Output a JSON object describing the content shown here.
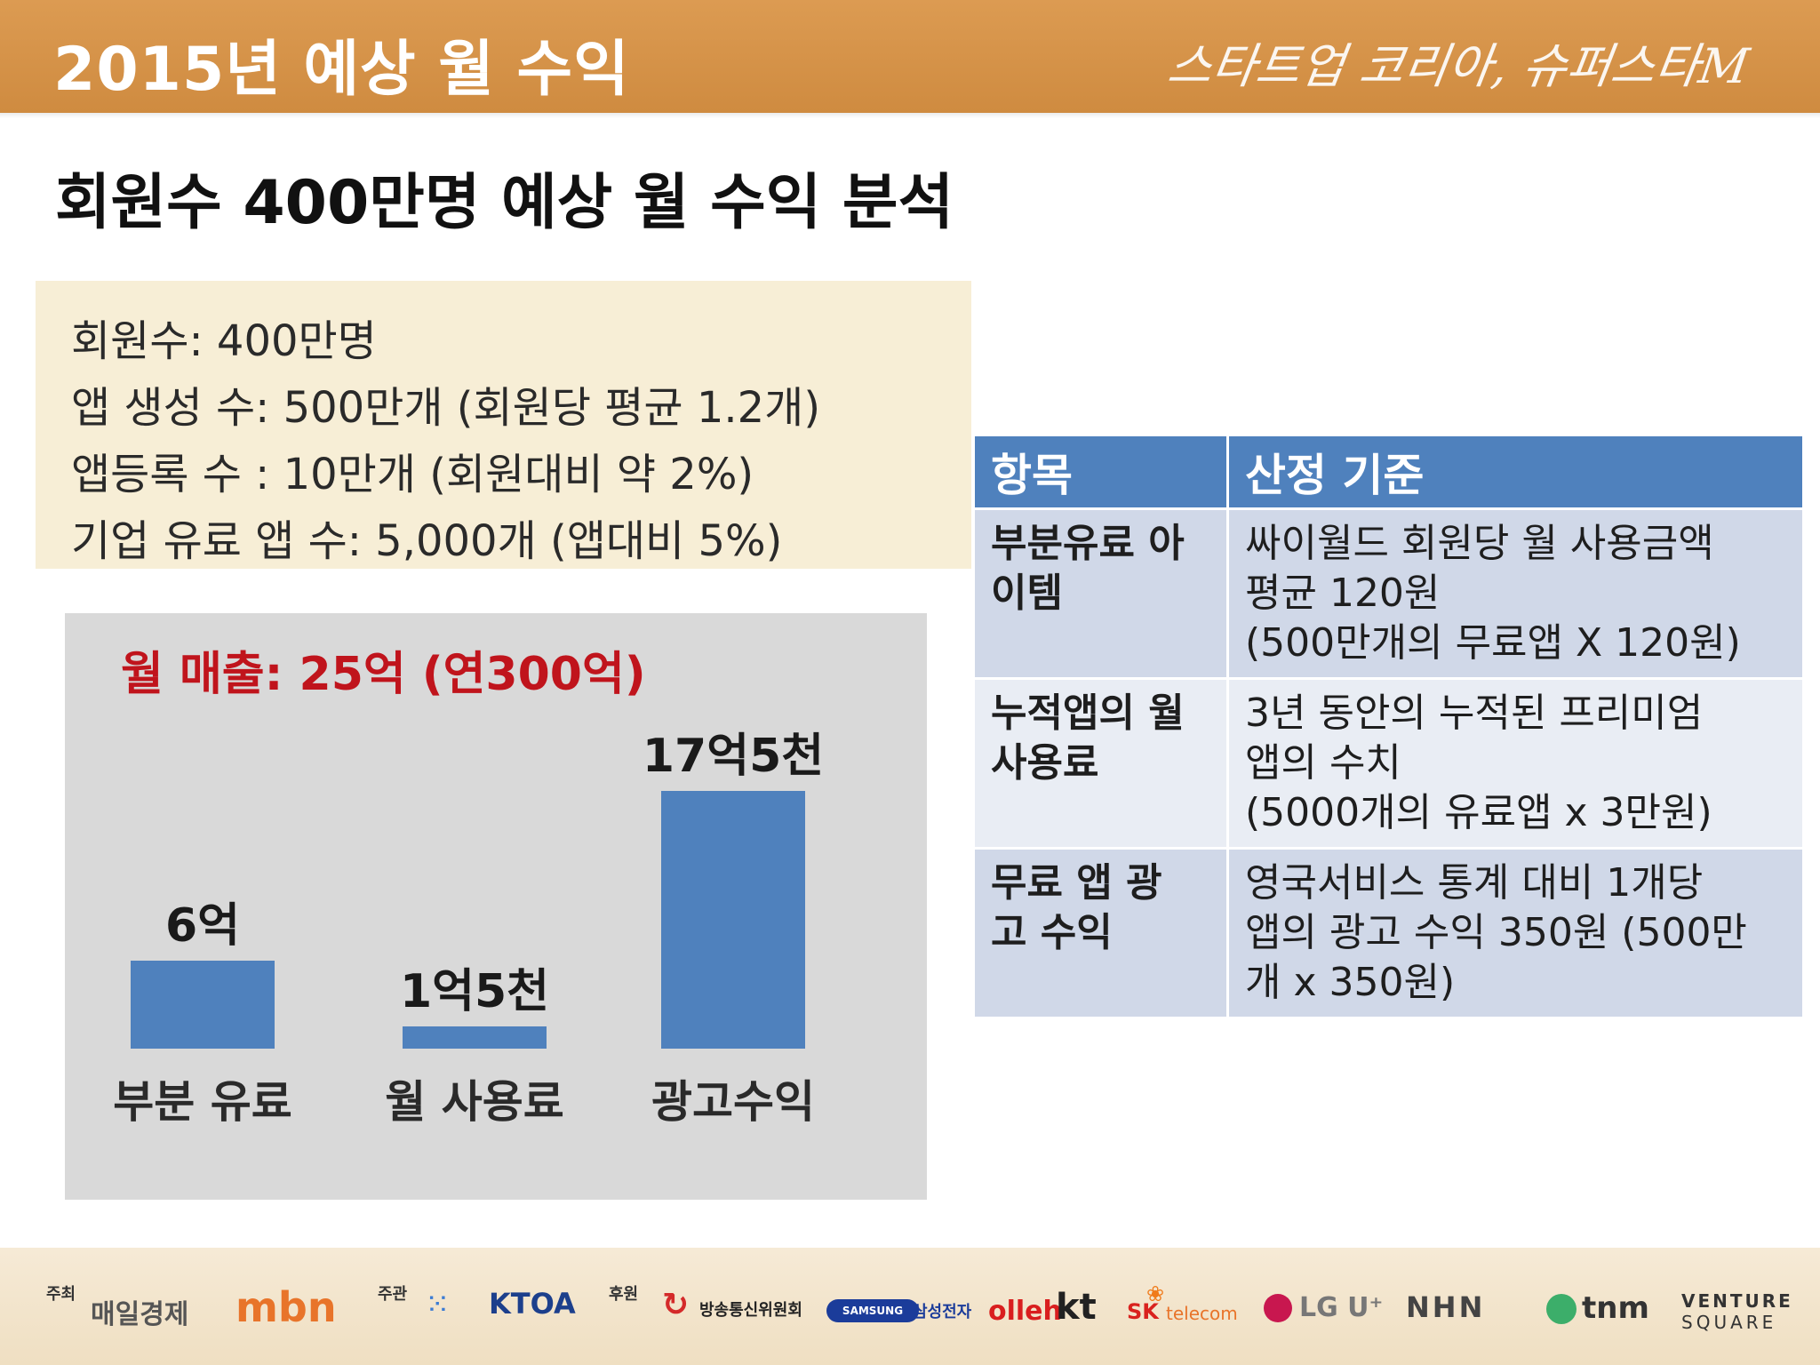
{
  "header": {
    "title": "2015년 예상 월 수익",
    "slogan": "스타트업 코리아, 슈퍼스타M"
  },
  "subtitle": "회원수 400만명 예상 월 수익 분석",
  "info": {
    "lines": [
      "회원수: 400만명",
      "앱 생성 수: 500만개 (회원당 평균 1.2개)",
      "앱등록 수 : 10만개 (회원대비 약 2%)",
      "기업 유료 앱 수: 5,000개 (앱대비 5%)"
    ]
  },
  "chart_data": {
    "type": "bar",
    "title": "월 매출: 25억 (연300억)",
    "categories": [
      "부분 유료",
      "월 사용료",
      "광고수익"
    ],
    "values": [
      6,
      1.5,
      17.5
    ],
    "value_labels": [
      "6억",
      "1억5천",
      "17억5천"
    ],
    "unit": "억",
    "ylim": [
      0,
      17.5
    ],
    "grid": false,
    "legend": "none",
    "colors": {
      "bar": "#4f81bd",
      "background": "#d9d9d9",
      "title": "#c0141c"
    }
  },
  "table": {
    "headers": [
      "항목",
      "산정 기준"
    ],
    "rows": [
      {
        "item": [
          "부분유료 아",
          "이템"
        ],
        "basis": [
          "싸이월드 회원당 월 사용금액",
          "평균 120원",
          "(500만개의 무료앱 X 120원)"
        ]
      },
      {
        "item": [
          "누적앱의 월",
          "사용료"
        ],
        "basis": [
          "3년 동안의 누적된 프리미엄",
          "앱의 수치",
          "(5000개의 유료앱 x 3만원)"
        ]
      },
      {
        "item": [
          "무료 앱 광",
          "고 수익"
        ],
        "basis": [
          "영국서비스 통계 대비 1개당",
          "앱의 광고 수익 350원 (500만",
          "개 x 350원)"
        ]
      }
    ]
  },
  "footer": {
    "host_label": "주최",
    "organizer_label": "주관",
    "sponsor_label": "후원",
    "logos": [
      "매일경제",
      "mbn",
      "KTOA",
      "방송통신위원회",
      "SAMSUNG",
      "삼성전자",
      "olleh",
      "kt",
      "SK",
      "telecom",
      "LG U⁺",
      "NHN",
      "tnm",
      "VENTURE",
      "SQUARE"
    ]
  },
  "colors": {
    "header": "#d4914a",
    "table_header": "#4f81bd",
    "table_row_dark": "#d0d8e8",
    "table_row_light": "#e9edf4",
    "info_box": "#f7eed6"
  }
}
